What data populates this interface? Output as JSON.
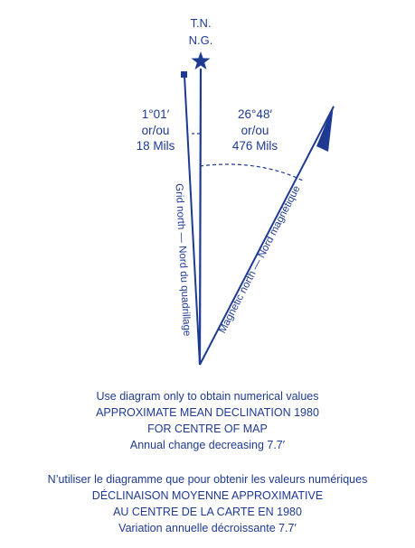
{
  "colors": {
    "ink": "#1f3a93",
    "background": "#ffffff"
  },
  "diagram": {
    "true_north_label_line1": "T.N.",
    "true_north_label_line2": "N.G.",
    "true_north_symbol": "star-icon",
    "grid_angle_line1": "1°01′",
    "grid_angle_line2": "or/ou",
    "grid_angle_line3": "18 Mils",
    "magnetic_angle_line1": "26°48′",
    "magnetic_angle_line2": "or/ou",
    "magnetic_angle_line3": "476 Mils",
    "grid_north_label": "Grid north — Nord du quadrillage",
    "magnetic_north_label": "Magnetic north — Nord magnétique",
    "grid_north_symbol": "square-marker-icon",
    "magnetic_north_symbol": "half-arrow-icon"
  },
  "caption_english": {
    "line1": "Use diagram only to obtain numerical values",
    "line2": "APPROXIMATE MEAN DECLINATION 1980",
    "line3": "FOR CENTRE OF MAP",
    "line4": "Annual change  decreasing 7.7′"
  },
  "caption_french": {
    "line1": "N’utiliser le diagramme que pour obtenir les valeurs numériques",
    "line2": "DÉCLINAISON MOYENNE APPROXIMATIVE",
    "line3": "AU CENTRE DE LA CARTE EN 1980",
    "line4": "Variation annuelle  décroissante 7.7′"
  }
}
